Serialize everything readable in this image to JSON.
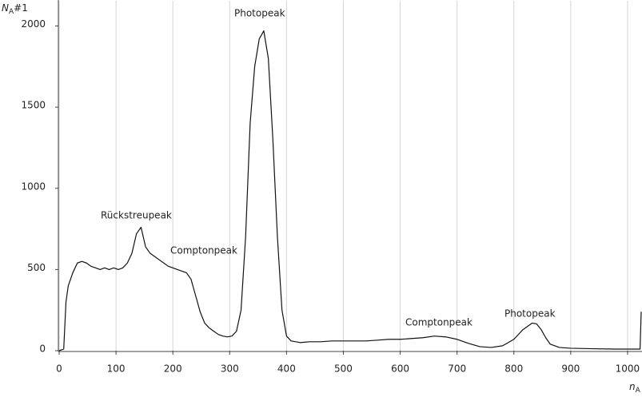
{
  "chart_data": {
    "type": "line",
    "x_label": {
      "symbol": "n",
      "subscript": "A"
    },
    "y_label": {
      "symbol": "N",
      "subscript": "A",
      "suffix": "#1"
    },
    "annotations": [
      "Rückstreupeak",
      "Comptonpeak",
      "Photopeak",
      "Comptonpeak",
      "Photopeak"
    ],
    "x": [
      0,
      8,
      12,
      16,
      24,
      32,
      40,
      48,
      56,
      64,
      72,
      80,
      88,
      96,
      104,
      112,
      120,
      128,
      136,
      144,
      152,
      160,
      168,
      176,
      184,
      192,
      200,
      208,
      216,
      224,
      232,
      240,
      248,
      256,
      264,
      272,
      280,
      288,
      296,
      304,
      312,
      320,
      328,
      336,
      344,
      352,
      360,
      368,
      376,
      384,
      392,
      400,
      408,
      416,
      424,
      440,
      460,
      480,
      500,
      520,
      540,
      560,
      580,
      600,
      620,
      640,
      660,
      680,
      700,
      720,
      740,
      760,
      780,
      800,
      816,
      832,
      840,
      848,
      856,
      864,
      880,
      900,
      940,
      980,
      1016,
      1022,
      1024
    ],
    "series": [
      {
        "name": "N_A#1",
        "color": "#111111",
        "values": [
          0,
          10,
          300,
          400,
          480,
          540,
          550,
          540,
          520,
          510,
          500,
          510,
          500,
          510,
          500,
          510,
          540,
          600,
          720,
          760,
          640,
          600,
          580,
          560,
          540,
          520,
          510,
          500,
          490,
          480,
          440,
          340,
          240,
          170,
          140,
          120,
          100,
          90,
          85,
          90,
          120,
          250,
          700,
          1400,
          1750,
          1920,
          1970,
          1800,
          1300,
          700,
          250,
          90,
          60,
          55,
          50,
          55,
          55,
          60,
          60,
          60,
          60,
          65,
          70,
          70,
          75,
          80,
          90,
          85,
          70,
          45,
          25,
          20,
          30,
          70,
          130,
          170,
          165,
          130,
          80,
          40,
          20,
          15,
          12,
          10,
          10,
          10,
          240
        ]
      }
    ],
    "xlim": [
      0,
      1024
    ],
    "ylim": [
      0,
      2155
    ],
    "xticks": [
      0,
      100,
      200,
      300,
      400,
      500,
      600,
      700,
      800,
      900,
      1000
    ],
    "yticks": [
      0,
      500,
      1000,
      1500,
      2000
    ],
    "grid": true
  }
}
